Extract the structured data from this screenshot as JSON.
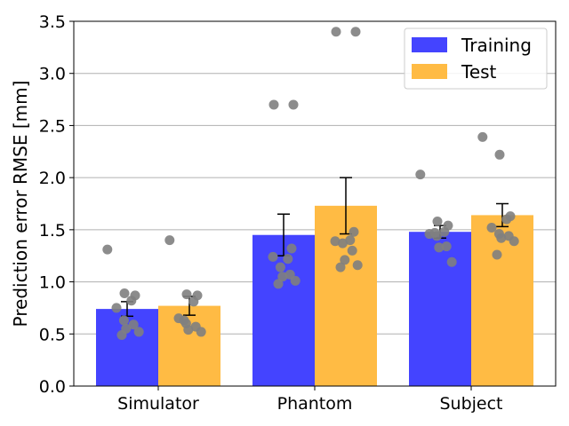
{
  "chart_data": {
    "type": "bar",
    "title": "",
    "xlabel": "",
    "ylabel": "Prediction error RMSE [mm]",
    "ylim": [
      0,
      3.5
    ],
    "yticks": [
      "0.0",
      "0.5",
      "1.0",
      "1.5",
      "2.0",
      "2.5",
      "3.0",
      "3.5"
    ],
    "grid": "y",
    "legend_position": "top-right",
    "categories": [
      "Simulator",
      "Phantom",
      "Subject"
    ],
    "series": [
      {
        "name": "Training",
        "color": "#4444ff",
        "values": [
          0.74,
          1.45,
          1.48
        ],
        "error": [
          0.07,
          0.2,
          0.06
        ],
        "points": [
          [
            1.31,
            0.89,
            0.87,
            0.82,
            0.75,
            0.63,
            0.59,
            0.55,
            0.52,
            0.49
          ],
          [
            2.7,
            2.7,
            1.32,
            1.22,
            1.24,
            1.14,
            1.07,
            1.05,
            1.01,
            0.98
          ],
          [
            2.03,
            1.58,
            1.54,
            1.48,
            1.46,
            1.44,
            1.34,
            1.33,
            1.19,
            1.47
          ]
        ]
      },
      {
        "name": "Test",
        "color": "#ffbb44",
        "values": [
          0.77,
          1.73,
          1.64
        ],
        "error": [
          0.09,
          0.27,
          0.11
        ],
        "points": [
          [
            1.4,
            0.88,
            0.87,
            0.81,
            0.65,
            0.6,
            0.57,
            0.54,
            0.52,
            0.63
          ],
          [
            3.4,
            3.4,
            1.48,
            1.4,
            1.39,
            1.37,
            1.3,
            1.21,
            1.16,
            1.14
          ],
          [
            2.39,
            2.22,
            1.63,
            1.6,
            1.52,
            1.46,
            1.44,
            1.42,
            1.39,
            1.26
          ]
        ]
      }
    ],
    "point_color": "#808080"
  }
}
